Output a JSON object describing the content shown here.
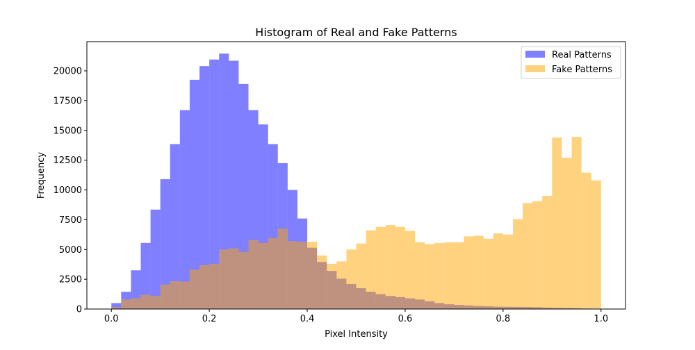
{
  "chart_data": {
    "type": "histogram",
    "title": "Histogram of Real and Fake Patterns",
    "xlabel": "Pixel Intensity",
    "ylabel": "Frequency",
    "xlim": [
      -0.05,
      1.05
    ],
    "ylim": [
      0,
      22450
    ],
    "xticks": [
      0.0,
      0.2,
      0.4,
      0.6,
      0.8,
      1.0
    ],
    "xtick_labels": [
      "0.0",
      "0.2",
      "0.4",
      "0.6",
      "0.8",
      "1.0"
    ],
    "yticks": [
      0,
      2500,
      5000,
      7500,
      10000,
      12500,
      15000,
      17500,
      20000
    ],
    "ytick_labels": [
      "0",
      "2500",
      "5000",
      "7500",
      "10000",
      "12500",
      "15000",
      "17500",
      "20000"
    ],
    "bin_range": [
      0.0,
      1.0
    ],
    "bins": 50,
    "legend_position": "top-right",
    "series": [
      {
        "name": "Real Patterns",
        "color": "#0000ff",
        "opacity": 0.5,
        "values": [
          500,
          1450,
          3250,
          5550,
          8350,
          10900,
          13850,
          16700,
          19250,
          20400,
          20950,
          21450,
          20850,
          18900,
          16700,
          15500,
          13850,
          12250,
          10000,
          7600,
          5150,
          3950,
          3200,
          2550,
          2100,
          1750,
          1450,
          1250,
          1100,
          1000,
          900,
          800,
          650,
          500,
          400,
          350,
          300,
          250,
          230,
          200,
          190,
          180,
          170,
          150,
          120,
          100,
          80,
          60,
          40,
          20
        ]
      },
      {
        "name": "Fake Patterns",
        "color": "#ffa500",
        "opacity": 0.5,
        "values": [
          150,
          800,
          900,
          1200,
          1100,
          2050,
          2350,
          2300,
          3300,
          3700,
          3800,
          5000,
          5100,
          4800,
          5800,
          5550,
          5950,
          6750,
          5700,
          5650,
          5650,
          4500,
          3800,
          4000,
          5000,
          5500,
          6600,
          6900,
          7050,
          6900,
          6550,
          5600,
          5450,
          5550,
          5600,
          5600,
          6100,
          6150,
          5900,
          6350,
          6250,
          7550,
          8900,
          9050,
          9500,
          14400,
          12700,
          14450,
          11450,
          10800
        ]
      }
    ]
  }
}
